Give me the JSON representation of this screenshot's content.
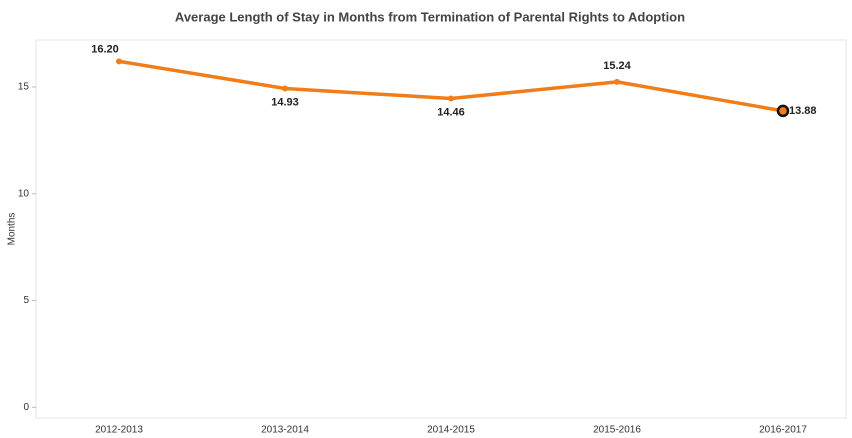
{
  "chart_data": {
    "type": "line",
    "title": "Average Length of Stay in Months from Termination of Parental Rights to Adoption",
    "y_label": "Months",
    "categories": [
      "2012-2013",
      "2013-2014",
      "2014-2015",
      "2015-2016",
      "2016-2017"
    ],
    "series": [
      {
        "name": "Months",
        "color": "#f07d1a",
        "values": [
          16.2,
          14.93,
          14.46,
          15.24,
          13.88
        ],
        "value_labels": [
          "16.20",
          "14.93",
          "14.46",
          "15.24",
          "13.88"
        ]
      }
    ],
    "ylim": [
      -0.5,
      17.2
    ],
    "yticks": [
      0,
      5,
      10,
      15
    ],
    "grid": false
  }
}
